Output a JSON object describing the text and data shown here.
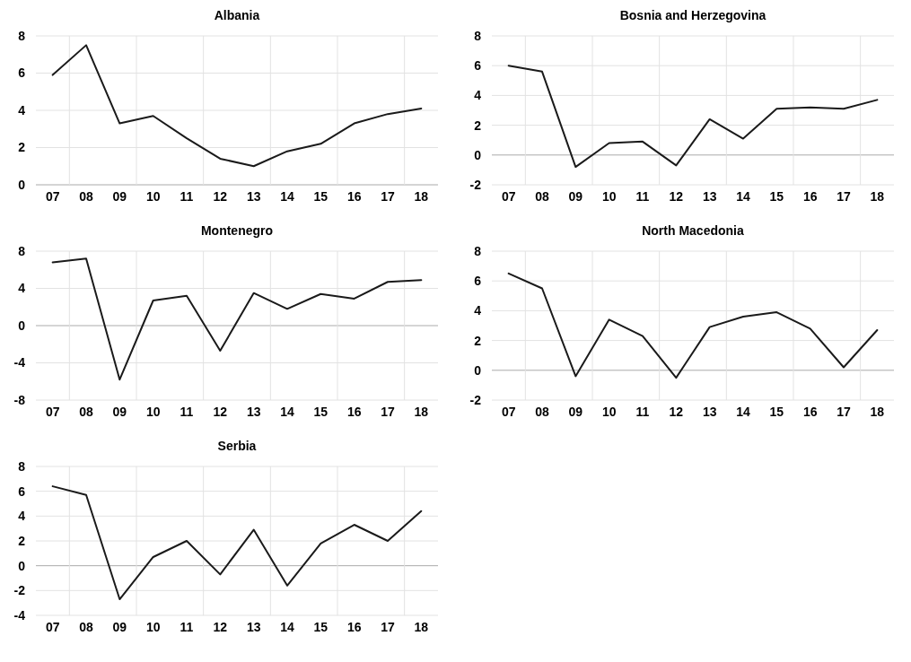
{
  "chart_data": [
    {
      "type": "line",
      "title": "Albania",
      "categories": [
        "07",
        "08",
        "09",
        "10",
        "11",
        "12",
        "13",
        "14",
        "15",
        "16",
        "17",
        "18"
      ],
      "series": [
        {
          "color": "#1a1a1a",
          "values": [
            5.9,
            7.5,
            3.3,
            3.7,
            2.5,
            1.4,
            1.0,
            1.8,
            2.2,
            3.3,
            3.8,
            4.1
          ]
        }
      ],
      "ylim": [
        0,
        8
      ],
      "yticks": [
        0,
        2,
        4,
        6,
        8
      ],
      "grid": true
    },
    {
      "type": "line",
      "title": "Bosnia and Herzegovina",
      "categories": [
        "07",
        "08",
        "09",
        "10",
        "11",
        "12",
        "13",
        "14",
        "15",
        "16",
        "17",
        "18"
      ],
      "series": [
        {
          "color": "#1a1a1a",
          "values": [
            6.0,
            5.6,
            -0.8,
            0.8,
            0.9,
            -0.7,
            2.4,
            1.1,
            3.1,
            3.2,
            3.1,
            3.7
          ]
        }
      ],
      "ylim": [
        -2,
        8
      ],
      "yticks": [
        -2,
        0,
        2,
        4,
        6,
        8
      ],
      "grid": true
    },
    {
      "type": "line",
      "title": "Montenegro",
      "categories": [
        "07",
        "08",
        "09",
        "10",
        "11",
        "12",
        "13",
        "14",
        "15",
        "16",
        "17",
        "18"
      ],
      "series": [
        {
          "color": "#1a1a1a",
          "values": [
            6.8,
            7.2,
            -5.8,
            2.7,
            3.2,
            -2.7,
            3.5,
            1.8,
            3.4,
            2.9,
            4.7,
            4.9
          ]
        }
      ],
      "ylim": [
        -8,
        8
      ],
      "yticks": [
        -8,
        -4,
        0,
        4,
        8
      ],
      "grid": true
    },
    {
      "type": "line",
      "title": "North Macedonia",
      "categories": [
        "07",
        "08",
        "09",
        "10",
        "11",
        "12",
        "13",
        "14",
        "15",
        "16",
        "17",
        "18"
      ],
      "series": [
        {
          "color": "#1a1a1a",
          "values": [
            6.5,
            5.5,
            -0.4,
            3.4,
            2.3,
            -0.5,
            2.9,
            3.6,
            3.9,
            2.8,
            0.2,
            2.7
          ]
        }
      ],
      "ylim": [
        -2,
        8
      ],
      "yticks": [
        -2,
        0,
        2,
        4,
        6,
        8
      ],
      "grid": true
    },
    {
      "type": "line",
      "title": "Serbia",
      "categories": [
        "07",
        "08",
        "09",
        "10",
        "11",
        "12",
        "13",
        "14",
        "15",
        "16",
        "17",
        "18"
      ],
      "series": [
        {
          "color": "#1a1a1a",
          "values": [
            6.4,
            5.7,
            -2.7,
            0.7,
            2.0,
            -0.7,
            2.9,
            -1.6,
            1.8,
            3.3,
            2.0,
            4.4
          ]
        }
      ],
      "ylim": [
        -4,
        8
      ],
      "yticks": [
        -4,
        -2,
        0,
        2,
        4,
        6,
        8
      ],
      "grid": true
    }
  ]
}
